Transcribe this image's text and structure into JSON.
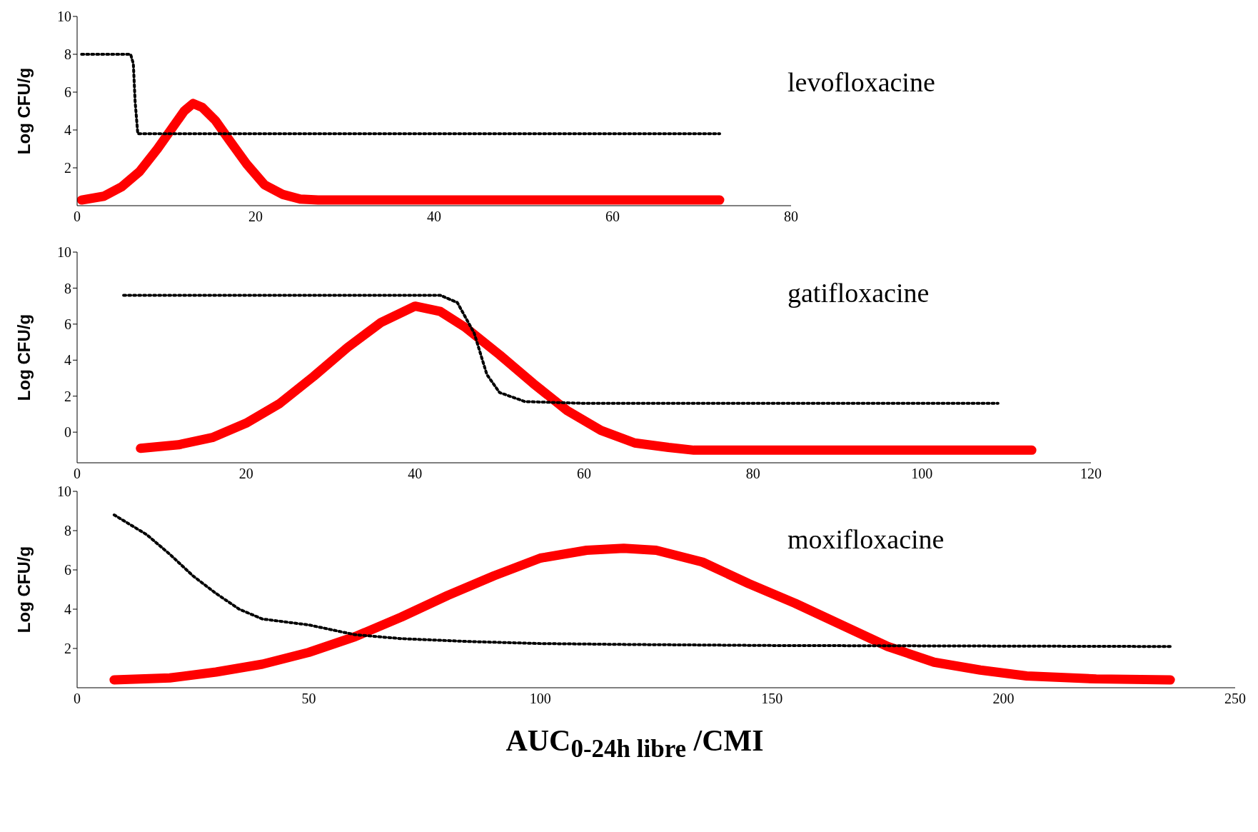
{
  "chart_data": [
    {
      "type": "line",
      "title": "levofloxacine",
      "ylabel": "Log CFU/g",
      "xlim": [
        0,
        80
      ],
      "xticks": [
        0,
        20,
        40,
        60,
        80
      ],
      "ylim": [
        0,
        10
      ],
      "yticks": [
        2,
        4,
        6,
        8,
        10
      ],
      "series": [
        {
          "color": "#ff0000",
          "line_style": "solid",
          "x": [
            0.5,
            3,
            5,
            7,
            9,
            10.5,
            12,
            13,
            14,
            15.5,
            17,
            19,
            21,
            23,
            25,
            27,
            72
          ],
          "values": [
            0.3,
            0.5,
            1,
            1.8,
            3,
            4,
            5,
            5.4,
            5.2,
            4.5,
            3.5,
            2.2,
            1.1,
            0.6,
            0.35,
            0.3,
            0.3
          ]
        },
        {
          "color": "#000000",
          "line_style": "dotted",
          "x": [
            0.5,
            6,
            6.3,
            6.5,
            6.8,
            72
          ],
          "values": [
            8,
            8,
            7.5,
            5.5,
            3.8,
            3.8
          ]
        }
      ]
    },
    {
      "type": "line",
      "title": "gatifloxacine",
      "ylabel": "Log CFU/g",
      "xlim": [
        0,
        120
      ],
      "xticks": [
        0,
        20,
        40,
        60,
        80,
        100,
        120
      ],
      "ylim": [
        -1.7,
        10
      ],
      "yticks": [
        0,
        2,
        4,
        6,
        8,
        10
      ],
      "series": [
        {
          "color": "#ff0000",
          "line_style": "solid",
          "x": [
            7.5,
            12,
            16,
            20,
            24,
            28,
            32,
            36,
            40,
            43,
            46,
            50,
            54,
            58,
            62,
            66,
            70,
            73,
            113
          ],
          "values": [
            -0.9,
            -0.7,
            -0.3,
            0.5,
            1.6,
            3.1,
            4.7,
            6.1,
            7,
            6.7,
            5.8,
            4.3,
            2.7,
            1.2,
            0.1,
            -0.6,
            -0.85,
            -1,
            -1
          ]
        },
        {
          "color": "#000000",
          "line_style": "dotted",
          "x": [
            5.5,
            43,
            45,
            47,
            48.5,
            50,
            53,
            60,
            109
          ],
          "values": [
            7.6,
            7.6,
            7.2,
            5.5,
            3.2,
            2.2,
            1.7,
            1.6,
            1.6
          ]
        }
      ]
    },
    {
      "type": "line",
      "title": "moxifloxacine",
      "ylabel": "Log CFU/g",
      "xlabel": "AUC$_{0-24h libre}$ /CMI",
      "xlim": [
        0,
        250
      ],
      "xticks": [
        0,
        50,
        100,
        150,
        200,
        250
      ],
      "ylim": [
        0,
        10
      ],
      "yticks": [
        2,
        4,
        6,
        8,
        10
      ],
      "series": [
        {
          "color": "#ff0000",
          "line_style": "solid",
          "x": [
            8,
            20,
            30,
            40,
            50,
            60,
            70,
            80,
            90,
            100,
            110,
            118,
            125,
            135,
            145,
            150,
            155,
            165,
            175,
            185,
            195,
            205,
            220,
            236
          ],
          "values": [
            0.4,
            0.5,
            0.8,
            1.2,
            1.8,
            2.6,
            3.6,
            4.7,
            5.7,
            6.6,
            7,
            7.1,
            7,
            6.4,
            5.3,
            4.8,
            4.3,
            3.2,
            2.1,
            1.3,
            0.9,
            0.6,
            0.45,
            0.4
          ]
        },
        {
          "color": "#000000",
          "line_style": "dotted",
          "x": [
            8,
            15,
            20,
            25,
            30,
            35,
            40,
            50,
            60,
            70,
            85,
            100,
            120,
            150,
            236
          ],
          "values": [
            8.8,
            7.8,
            6.8,
            5.7,
            4.8,
            4,
            3.5,
            3.2,
            2.7,
            2.5,
            2.35,
            2.25,
            2.2,
            2.15,
            2.1
          ]
        }
      ]
    }
  ]
}
